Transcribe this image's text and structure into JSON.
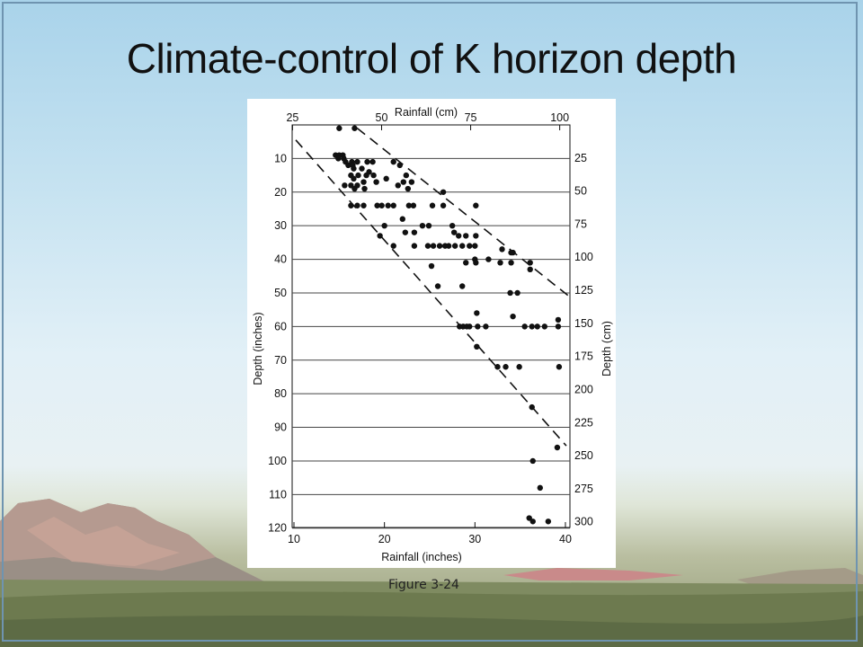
{
  "slide": {
    "title": "Climate-control of K horizon depth",
    "caption": "Figure 3-24"
  },
  "chart_data": {
    "type": "scatter",
    "top_axis_label": "Rainfall (cm)",
    "bottom_axis_label": "Rainfall (inches)",
    "left_axis_label": "Depth (inches)",
    "right_axis_label": "Depth (cm)",
    "x_range_inches": [
      9.8,
      40.5
    ],
    "y_range_inches": [
      119.8,
      0
    ],
    "bottom_ticks": [
      10,
      20,
      30,
      40
    ],
    "top_ticks": [
      25,
      50,
      75,
      100
    ],
    "left_ticks": [
      10,
      20,
      30,
      40,
      50,
      60,
      70,
      80,
      90,
      100,
      110,
      120
    ],
    "right_ticks": [
      25,
      50,
      75,
      100,
      125,
      150,
      175,
      200,
      225,
      250,
      275,
      300
    ],
    "horizontal_grid": true,
    "points": [
      [
        15.0,
        1
      ],
      [
        16.7,
        1
      ],
      [
        14.6,
        9
      ],
      [
        15.0,
        9
      ],
      [
        15.4,
        9
      ],
      [
        14.9,
        10
      ],
      [
        15.5,
        10
      ],
      [
        15.7,
        11
      ],
      [
        16.4,
        11
      ],
      [
        17.0,
        11
      ],
      [
        18.1,
        11
      ],
      [
        18.7,
        11
      ],
      [
        21.0,
        11
      ],
      [
        16.0,
        12
      ],
      [
        16.5,
        12
      ],
      [
        21.7,
        12
      ],
      [
        16.6,
        13
      ],
      [
        17.5,
        13
      ],
      [
        18.3,
        14
      ],
      [
        16.3,
        15
      ],
      [
        17.1,
        15
      ],
      [
        18.0,
        15
      ],
      [
        18.8,
        15
      ],
      [
        22.4,
        15
      ],
      [
        16.6,
        16
      ],
      [
        20.2,
        16
      ],
      [
        17.7,
        17
      ],
      [
        19.1,
        17
      ],
      [
        22.1,
        17
      ],
      [
        23.0,
        17
      ],
      [
        15.6,
        18
      ],
      [
        16.3,
        18
      ],
      [
        17.0,
        18
      ],
      [
        21.5,
        18
      ],
      [
        22.6,
        19
      ],
      [
        16.7,
        19
      ],
      [
        17.8,
        19
      ],
      [
        26.5,
        20
      ],
      [
        16.3,
        24
      ],
      [
        17.0,
        24
      ],
      [
        17.7,
        24
      ],
      [
        19.2,
        24
      ],
      [
        19.7,
        24
      ],
      [
        20.4,
        24
      ],
      [
        21.0,
        24
      ],
      [
        22.7,
        24
      ],
      [
        23.2,
        24
      ],
      [
        25.3,
        24
      ],
      [
        26.5,
        24
      ],
      [
        30.1,
        24
      ],
      [
        22.0,
        28
      ],
      [
        20.0,
        30
      ],
      [
        24.2,
        30
      ],
      [
        24.9,
        30
      ],
      [
        27.5,
        30
      ],
      [
        19.5,
        33
      ],
      [
        22.3,
        32
      ],
      [
        23.3,
        32
      ],
      [
        27.7,
        32
      ],
      [
        28.2,
        33
      ],
      [
        29.0,
        33
      ],
      [
        30.1,
        33
      ],
      [
        21.0,
        36
      ],
      [
        23.3,
        36
      ],
      [
        24.8,
        36
      ],
      [
        25.4,
        36
      ],
      [
        26.1,
        36
      ],
      [
        26.7,
        36
      ],
      [
        27.1,
        36
      ],
      [
        27.8,
        36
      ],
      [
        28.6,
        36
      ],
      [
        29.4,
        36
      ],
      [
        30.0,
        36
      ],
      [
        33.0,
        37
      ],
      [
        34.0,
        38
      ],
      [
        34.2,
        38
      ],
      [
        30.0,
        40
      ],
      [
        31.5,
        40
      ],
      [
        29.0,
        41
      ],
      [
        30.1,
        41
      ],
      [
        32.8,
        41
      ],
      [
        34.0,
        41
      ],
      [
        36.1,
        41
      ],
      [
        25.2,
        42
      ],
      [
        36.1,
        43
      ],
      [
        25.9,
        48
      ],
      [
        28.6,
        48
      ],
      [
        33.9,
        50
      ],
      [
        34.7,
        50
      ],
      [
        30.2,
        56
      ],
      [
        34.2,
        57
      ],
      [
        28.3,
        60
      ],
      [
        28.7,
        60
      ],
      [
        29.1,
        60
      ],
      [
        29.4,
        60
      ],
      [
        30.3,
        60
      ],
      [
        31.2,
        60
      ],
      [
        35.5,
        60
      ],
      [
        36.3,
        60
      ],
      [
        36.9,
        60
      ],
      [
        37.7,
        60
      ],
      [
        39.2,
        58
      ],
      [
        39.2,
        60
      ],
      [
        30.2,
        66
      ],
      [
        32.5,
        72
      ],
      [
        33.4,
        72
      ],
      [
        34.9,
        72
      ],
      [
        39.3,
        72
      ],
      [
        36.3,
        84
      ],
      [
        39.1,
        96
      ],
      [
        36.4,
        100
      ],
      [
        37.2,
        108
      ],
      [
        36.0,
        117
      ],
      [
        36.4,
        118
      ],
      [
        38.1,
        118
      ]
    ],
    "bounds": [
      {
        "name": "upper-bound",
        "from": [
          17.0,
          1.0
        ],
        "to": [
          40.4,
          51.0
        ]
      },
      {
        "name": "lower-bound",
        "from": [
          10.2,
          4.5
        ],
        "to": [
          40.1,
          95.5
        ]
      }
    ]
  }
}
